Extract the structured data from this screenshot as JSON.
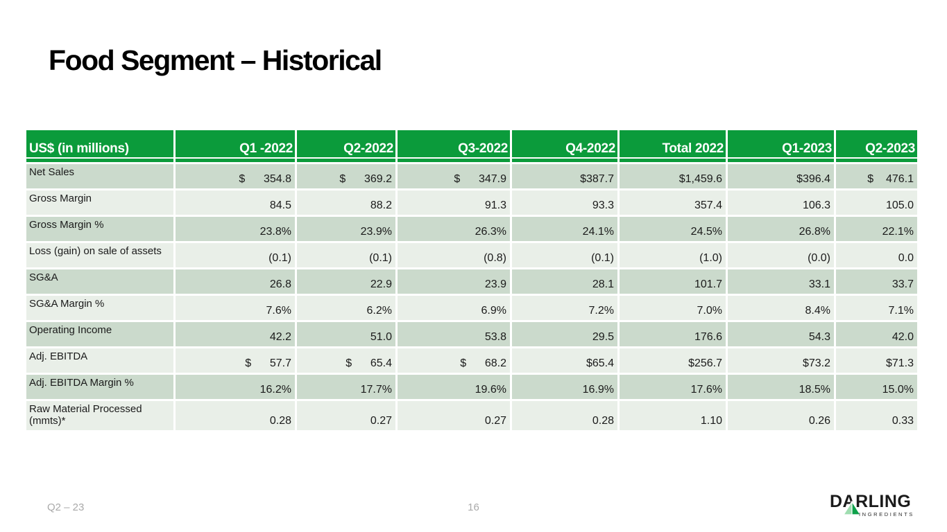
{
  "slide": {
    "title": "Food Segment – Historical",
    "footer": {
      "left": "Q2 – 23",
      "page": "16"
    },
    "logo": {
      "brand": "DARLING",
      "sub": "INGREDIENTS",
      "triangle_icon": "green-pyramid"
    }
  },
  "colors": {
    "header_green": "#0B9B3B",
    "row_dark": "#CBDACC",
    "row_light": "#E9EFE8",
    "footer_gray": "#A9A9A9",
    "logo_triangle_light": "#9FDDB0",
    "logo_triangle_dark": "#0EA14A"
  },
  "table": {
    "unit_label": "US$ (in millions)",
    "columns": [
      "Q1 -2022",
      "Q2-2022",
      "Q3-2022",
      "Q4-2022",
      "Total 2022",
      "Q1-2023",
      "Q2-2023"
    ],
    "rows": [
      {
        "label": "Net Sales",
        "values": [
          "$      354.8",
          "$      369.2",
          "$      347.9",
          "$387.7",
          "$1,459.6",
          "$396.4",
          "$    476.1"
        ]
      },
      {
        "label": "Gross Margin",
        "values": [
          "84.5",
          "88.2",
          "91.3",
          "93.3",
          "357.4",
          "106.3",
          "105.0"
        ]
      },
      {
        "label": "Gross Margin %",
        "values": [
          "23.8%",
          "23.9%",
          "26.3%",
          "24.1%",
          "24.5%",
          "26.8%",
          "22.1%"
        ]
      },
      {
        "label": "Loss (gain) on sale of assets",
        "values": [
          "(0.1)",
          "(0.1)",
          "(0.8)",
          "(0.1)",
          "(1.0)",
          "(0.0)",
          "0.0"
        ]
      },
      {
        "label": "SG&A",
        "values": [
          "26.8",
          "22.9",
          "23.9",
          "28.1",
          "101.7",
          "33.1",
          "33.7"
        ]
      },
      {
        "label": "SG&A Margin %",
        "values": [
          "7.6%",
          "6.2%",
          "6.9%",
          "7.2%",
          "7.0%",
          "8.4%",
          "7.1%"
        ]
      },
      {
        "label": "Operating Income",
        "values": [
          "42.2",
          "51.0",
          "53.8",
          "29.5",
          "176.6",
          "54.3",
          "42.0"
        ]
      },
      {
        "label": "Adj. EBITDA",
        "values": [
          "$      57.7",
          "$      65.4",
          "$      68.2",
          "$65.4",
          "$256.7",
          "$73.2",
          "$71.3"
        ]
      },
      {
        "label": "Adj. EBITDA Margin %",
        "values": [
          "16.2%",
          "17.7%",
          "19.6%",
          "16.9%",
          "17.6%",
          "18.5%",
          "15.0%"
        ]
      },
      {
        "label": "Raw Material Processed (mmts)*",
        "values": [
          "0.28",
          "0.27",
          "0.27",
          "0.28",
          "1.10",
          "0.26",
          "0.33"
        ]
      }
    ]
  }
}
